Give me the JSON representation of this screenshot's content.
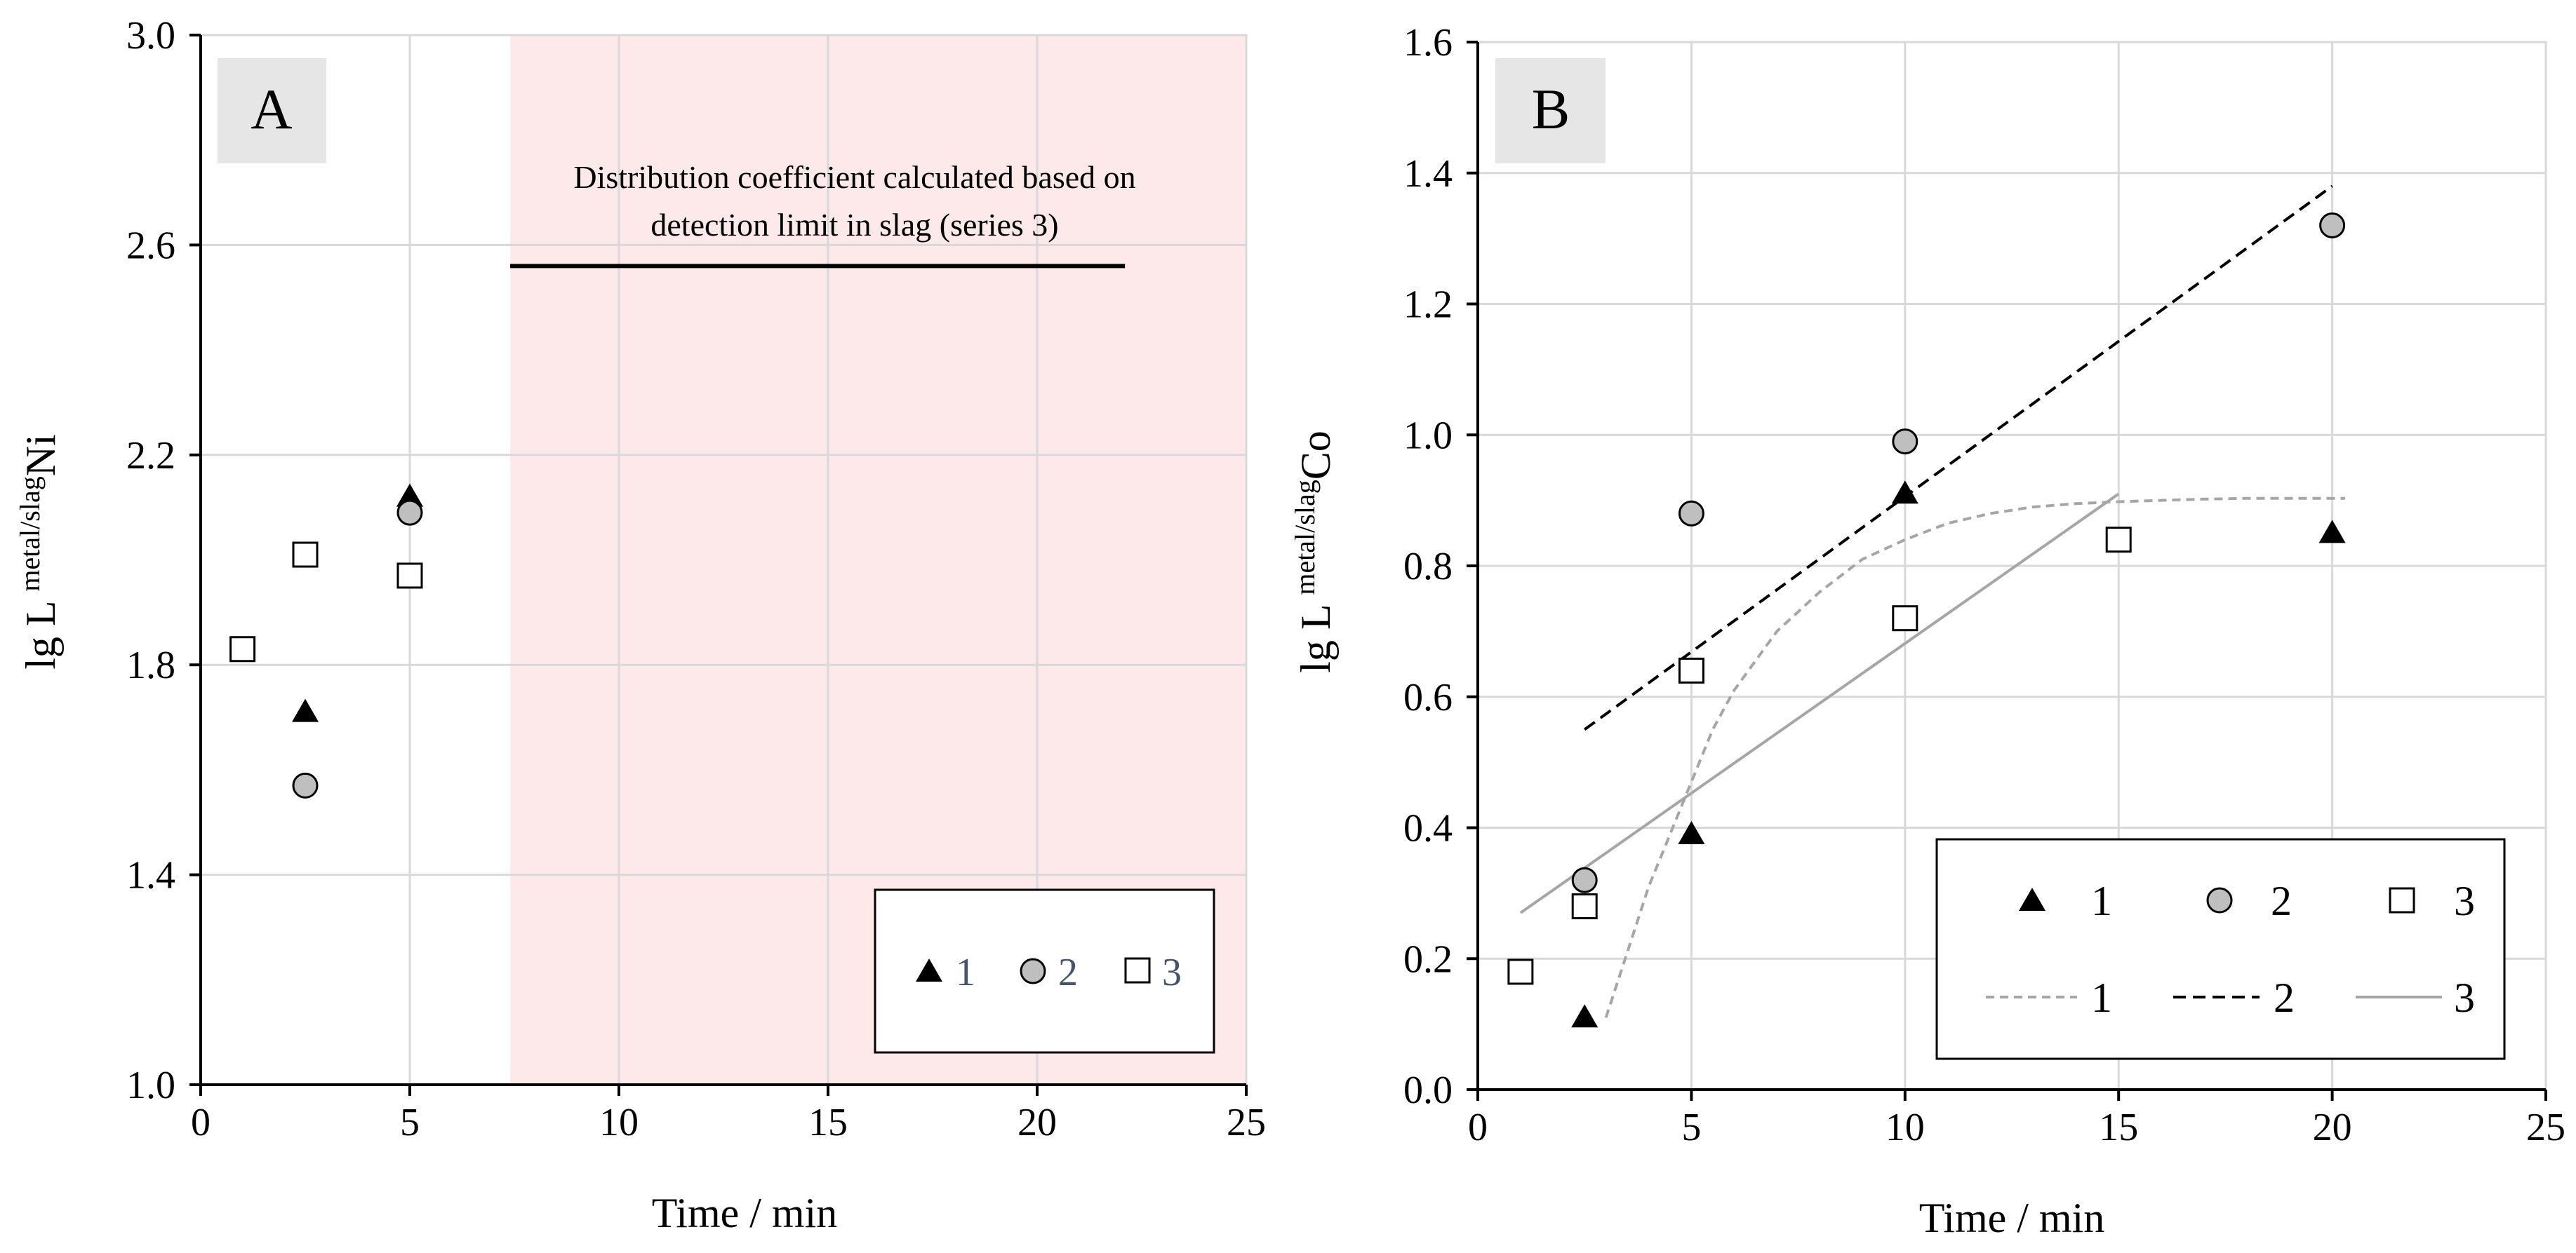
{
  "colors": {
    "shade": "#fde9ea",
    "grid": "#d9d9d9",
    "axis": "#000000",
    "label_box": "#e6e6e6",
    "marker_gray": "#bfbfbf",
    "trend1": "#a6a6a6",
    "trend3": "#a6a6a6",
    "legend_text_a": "#44546a"
  },
  "chart_data": [
    {
      "type": "scatter",
      "panel_label": "A",
      "xlabel": "Time / min",
      "ylabel_main": "lg L",
      "ylabel_sup": "metal/slag",
      "ylabel_tail": "Ni",
      "xlim": [
        0,
        25
      ],
      "ylim": [
        1.0,
        3.0
      ],
      "x_ticks": [
        0,
        5,
        10,
        15,
        20,
        25
      ],
      "x_tick_labels": [
        "0",
        "5",
        "10",
        "15",
        "20",
        "25"
      ],
      "y_ticks": [
        1.0,
        1.4,
        1.8,
        2.2,
        2.6,
        3.0
      ],
      "y_tick_labels": [
        "1.0",
        "1.4",
        "1.8",
        "2.2",
        "2.6",
        "3.0"
      ],
      "shaded_region": {
        "x": [
          7.4,
          25
        ]
      },
      "annotation": {
        "line1": "Distribution coefficient calculated based on",
        "line2": "detection limit in slag (series 3)",
        "line_x": [
          7.4,
          22.1
        ],
        "line_y": 2.56
      },
      "legend_position": "bottom-right",
      "series": [
        {
          "name": "1",
          "marker": "triangle",
          "x": [
            2.5,
            5
          ],
          "y": [
            1.71,
            2.12
          ]
        },
        {
          "name": "2",
          "marker": "circle",
          "x": [
            2.5,
            5
          ],
          "y": [
            1.57,
            2.09
          ]
        },
        {
          "name": "3",
          "marker": "square",
          "x": [
            1,
            2.5,
            5
          ],
          "y": [
            1.83,
            2.01,
            1.97
          ]
        }
      ]
    },
    {
      "type": "scatter",
      "panel_label": "B",
      "xlabel": "Time / min",
      "ylabel_main": "lg L",
      "ylabel_sup": "metal/slag",
      "ylabel_tail": "Co",
      "xlim": [
        0,
        25
      ],
      "ylim": [
        0.0,
        1.6
      ],
      "x_ticks": [
        0,
        5,
        10,
        15,
        20,
        25
      ],
      "x_tick_labels": [
        "0",
        "5",
        "10",
        "15",
        "20",
        "25"
      ],
      "y_ticks": [
        0.0,
        0.2,
        0.4,
        0.6,
        0.8,
        1.0,
        1.2,
        1.4,
        1.6
      ],
      "y_tick_labels": [
        "0.0",
        "0.2",
        "0.4",
        "0.6",
        "0.8",
        "1.0",
        "1.2",
        "1.4",
        "1.6"
      ],
      "legend_position": "bottom-right",
      "series": [
        {
          "name": "1",
          "marker": "triangle",
          "x": [
            2.5,
            5,
            10,
            20
          ],
          "y": [
            0.11,
            0.39,
            0.91,
            0.85
          ]
        },
        {
          "name": "2",
          "marker": "circle",
          "x": [
            2.5,
            5,
            10,
            20
          ],
          "y": [
            0.32,
            0.88,
            0.99,
            1.32
          ]
        },
        {
          "name": "3",
          "marker": "square",
          "x": [
            1,
            2.5,
            5,
            10,
            15
          ],
          "y": [
            0.18,
            0.28,
            0.64,
            0.72,
            0.84
          ]
        }
      ],
      "trendlines": [
        {
          "name": "1",
          "style": "dashed-gray",
          "x": [
            3.0,
            3.5,
            4.0,
            4.5,
            5.0,
            5.5,
            6.0,
            7.0,
            8.0,
            9.0,
            10.0,
            11.0,
            12.0,
            13.0,
            14.0,
            15.0,
            16.0,
            17.0,
            18.0,
            19.0,
            20.3
          ],
          "y": [
            0.11,
            0.21,
            0.31,
            0.39,
            0.47,
            0.55,
            0.61,
            0.7,
            0.76,
            0.81,
            0.84,
            0.865,
            0.88,
            0.89,
            0.895,
            0.898,
            0.9,
            0.902,
            0.903,
            0.903,
            0.903
          ]
        },
        {
          "name": "2",
          "style": "dashed-black",
          "x": [
            2.5,
            20
          ],
          "y": [
            0.55,
            1.38
          ]
        },
        {
          "name": "3",
          "style": "solid-gray",
          "x": [
            1,
            15
          ],
          "y": [
            0.27,
            0.91
          ]
        }
      ]
    }
  ]
}
